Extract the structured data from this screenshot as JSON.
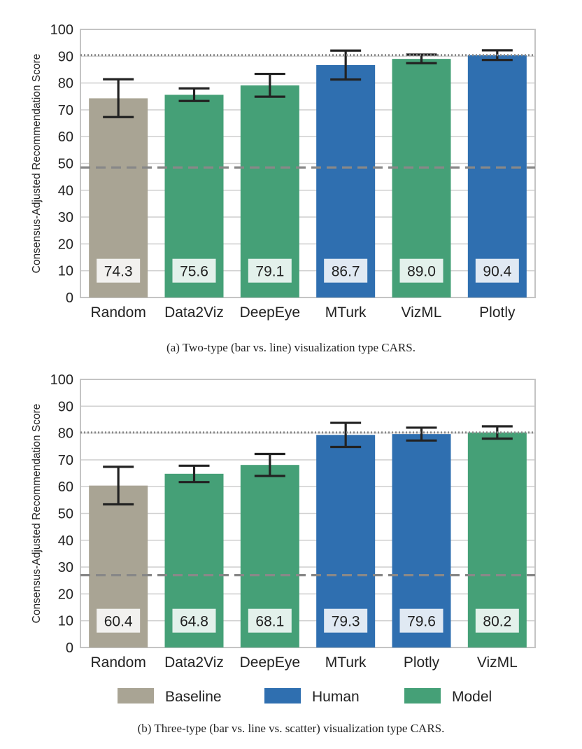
{
  "chart_data": [
    {
      "type": "bar",
      "caption": "(a) Two-type (bar vs. line) visualization type CARS.",
      "ylabel": "Consensus-Adjusted Recommendation Score",
      "xlabel": "",
      "ylim": [
        0,
        100
      ],
      "yticks": [
        "0",
        "10",
        "20",
        "30",
        "40",
        "50",
        "60",
        "70",
        "80",
        "90",
        "100"
      ],
      "grid": "horizontal",
      "categories": [
        "Random",
        "Data2Viz",
        "DeepEye",
        "MTurk",
        "VizML",
        "Plotly"
      ],
      "groups": [
        "Baseline",
        "Model",
        "Model",
        "Human",
        "Model",
        "Human"
      ],
      "values": [
        74.3,
        75.6,
        79.1,
        86.7,
        89.0,
        90.4
      ],
      "value_labels": [
        "74.3",
        "75.6",
        "79.1",
        "86.7",
        "89.0",
        "90.4"
      ],
      "error_low": [
        67.3,
        73.3,
        74.9,
        81.3,
        87.4,
        88.6
      ],
      "error_high": [
        81.4,
        78.0,
        83.4,
        92.1,
        90.6,
        92.2
      ],
      "reference_lines": [
        {
          "y": 90.4,
          "style": "dotted"
        },
        {
          "y": 48.5,
          "style": "dashed"
        }
      ]
    },
    {
      "type": "bar",
      "caption": "(b) Three-type (bar vs. line vs. scatter) visualization type CARS.",
      "ylabel": "Consensus-Adjusted Recommendation Score",
      "xlabel": "",
      "ylim": [
        0,
        100
      ],
      "yticks": [
        "0",
        "10",
        "20",
        "30",
        "40",
        "50",
        "60",
        "70",
        "80",
        "90",
        "100"
      ],
      "grid": "horizontal",
      "categories": [
        "Random",
        "Data2Viz",
        "DeepEye",
        "MTurk",
        "Plotly",
        "VizML"
      ],
      "groups": [
        "Baseline",
        "Model",
        "Model",
        "Human",
        "Human",
        "Model"
      ],
      "values": [
        60.4,
        64.8,
        68.1,
        79.3,
        79.6,
        80.2
      ],
      "value_labels": [
        "60.4",
        "64.8",
        "68.1",
        "79.3",
        "79.6",
        "80.2"
      ],
      "error_low": [
        53.4,
        61.7,
        64.0,
        74.8,
        77.2,
        77.9
      ],
      "error_high": [
        67.4,
        67.8,
        72.2,
        83.8,
        82.0,
        82.5
      ],
      "reference_lines": [
        {
          "y": 80.2,
          "style": "dotted"
        },
        {
          "y": 27.0,
          "style": "dashed"
        }
      ]
    }
  ],
  "legend": {
    "placement": "bottom",
    "items": [
      {
        "label": "Baseline",
        "color": "#a9a494"
      },
      {
        "label": "Human",
        "color": "#2f6fb0"
      },
      {
        "label": "Model",
        "color": "#45a077"
      }
    ]
  },
  "colors": {
    "Baseline": "#a9a494",
    "Human": "#2f6fb0",
    "Model": "#45a077",
    "grid": "#d2d2d2",
    "axes": "#c4c4c4",
    "errorbar": "#222222",
    "reference": "#888888",
    "text": "#222222"
  }
}
